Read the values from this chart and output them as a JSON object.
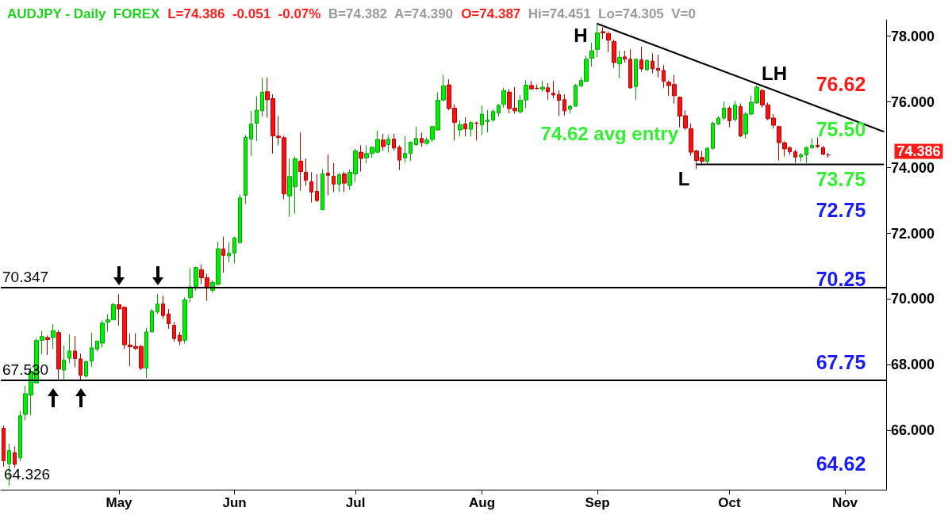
{
  "chart_data": {
    "type": "candlestick",
    "title": "AUDJPY - Daily  FOREX",
    "subtitle": "L=74.386 -0.051 -0.07% B=74.382 A=74.390 O=74.387 Hi=74.451 Lo=74.305 V=0",
    "categories": [
      null,
      null,
      null,
      null,
      null,
      null,
      null,
      null,
      null,
      null,
      null,
      null,
      null,
      null,
      null,
      null,
      null,
      null,
      null,
      null,
      null,
      "May",
      null,
      null,
      null,
      null,
      null,
      null,
      null,
      null,
      null,
      null,
      null,
      null,
      null,
      null,
      null,
      null,
      null,
      null,
      null,
      null,
      "Jun",
      null,
      null,
      null,
      null,
      null,
      null,
      null,
      null,
      null,
      null,
      null,
      null,
      null,
      null,
      null,
      null,
      null,
      null,
      null,
      null,
      null,
      "Jul",
      null,
      null,
      null,
      null,
      null,
      null,
      null,
      null,
      null,
      null,
      null,
      null,
      null,
      null,
      null,
      null,
      null,
      null,
      null,
      null,
      null,
      null,
      "Aug",
      null,
      null,
      null,
      null,
      null,
      null,
      null,
      null,
      null,
      null,
      null,
      null,
      null,
      null,
      null,
      null,
      null,
      null,
      null,
      null,
      "Sep",
      null,
      null,
      null,
      null,
      null,
      null,
      null,
      null,
      null,
      null,
      null,
      null,
      null,
      null,
      null,
      null,
      null,
      null,
      null,
      null,
      null,
      null,
      null,
      "Oct",
      null,
      null,
      null,
      null,
      null,
      null,
      null,
      null,
      null,
      null,
      null,
      null,
      null,
      null,
      null,
      null,
      null,
      null,
      null,
      null,
      "Nov",
      null,
      null,
      null,
      null,
      null,
      null,
      null
    ],
    "ohlc": [
      [
        66.07,
        66.15,
        64.9,
        65.08
      ],
      [
        64.99,
        65.6,
        64.326,
        65.39
      ],
      [
        65.33,
        65.52,
        64.87,
        64.97
      ],
      [
        65.17,
        66.6,
        65.06,
        66.45
      ],
      [
        66.49,
        67.36,
        66.31,
        67.12
      ],
      [
        67.08,
        67.93,
        66.46,
        67.8
      ],
      [
        67.45,
        68.8,
        67.45,
        68.74
      ],
      [
        68.74,
        69.03,
        68.32,
        68.86
      ],
      [
        68.83,
        68.89,
        68.3,
        68.77
      ],
      [
        68.83,
        69.24,
        68.48,
        69.04
      ],
      [
        68.98,
        69.05,
        67.56,
        67.87
      ],
      [
        67.84,
        68.58,
        67.56,
        68.14
      ],
      [
        68.2,
        68.92,
        68.05,
        68.42
      ],
      [
        68.42,
        68.87,
        67.93,
        68.19
      ],
      [
        68.18,
        68.34,
        67.5,
        67.68
      ],
      [
        67.66,
        68.12,
        67.61,
        68.1
      ],
      [
        68.11,
        68.98,
        67.94,
        68.52
      ],
      [
        68.48,
        68.74,
        68.41,
        68.72
      ],
      [
        68.66,
        69.35,
        68.53,
        69.27
      ],
      [
        69.3,
        69.54,
        69.01,
        69.37
      ],
      [
        69.37,
        69.89,
        69.37,
        69.83
      ],
      [
        69.83,
        70.15,
        69.2,
        69.7
      ],
      [
        69.75,
        69.78,
        68.48,
        68.61
      ],
      [
        68.6,
        68.95,
        67.96,
        68.55
      ],
      [
        68.56,
        68.96,
        68.45,
        68.5
      ],
      [
        68.56,
        68.6,
        67.84,
        67.9
      ],
      [
        67.9,
        69.13,
        67.6,
        69.0
      ],
      [
        69.0,
        69.7,
        69.0,
        69.63
      ],
      [
        69.61,
        70.15,
        69.55,
        69.85
      ],
      [
        69.85,
        70.1,
        69.4,
        69.5
      ],
      [
        69.55,
        69.7,
        69.1,
        69.25
      ],
      [
        69.2,
        69.3,
        68.7,
        68.8
      ],
      [
        68.9,
        69.0,
        68.6,
        68.72
      ],
      [
        68.75,
        70.05,
        68.65,
        69.98
      ],
      [
        70.05,
        70.94,
        69.9,
        70.37
      ],
      [
        70.39,
        70.99,
        70.25,
        70.96
      ],
      [
        70.89,
        71.06,
        70.46,
        70.65
      ],
      [
        70.65,
        70.77,
        69.95,
        70.33
      ],
      [
        70.27,
        70.58,
        70.19,
        70.51
      ],
      [
        70.45,
        71.75,
        70.41,
        71.53
      ],
      [
        71.53,
        71.9,
        70.8,
        71.33
      ],
      [
        71.32,
        71.73,
        71.12,
        71.4
      ],
      [
        71.4,
        71.9,
        71.09,
        71.86
      ],
      [
        71.72,
        73.18,
        71.69,
        73.08
      ],
      [
        73.16,
        74.99,
        72.9,
        74.92
      ],
      [
        74.87,
        75.73,
        74.36,
        75.33
      ],
      [
        75.35,
        76.17,
        74.81,
        75.75
      ],
      [
        75.73,
        76.72,
        75.55,
        76.3
      ],
      [
        76.31,
        76.74,
        75.53,
        76.07
      ],
      [
        76.1,
        76.23,
        74.43,
        74.97
      ],
      [
        74.96,
        75.57,
        74.68,
        74.92
      ],
      [
        74.91,
        74.97,
        73.04,
        73.2
      ],
      [
        73.14,
        74.27,
        72.5,
        73.73
      ],
      [
        73.42,
        74.34,
        72.6,
        74.27
      ],
      [
        74.2,
        75.07,
        73.3,
        73.88
      ],
      [
        73.86,
        74.28,
        73.45,
        73.62
      ],
      [
        73.57,
        73.86,
        72.94,
        73.26
      ],
      [
        73.28,
        73.8,
        72.96,
        73.0
      ],
      [
        72.72,
        73.96,
        72.72,
        73.81
      ],
      [
        73.83,
        74.4,
        73.16,
        73.77
      ],
      [
        73.74,
        74.14,
        73.26,
        73.5
      ],
      [
        73.5,
        73.84,
        73.26,
        73.78
      ],
      [
        73.81,
        73.88,
        73.26,
        73.53
      ],
      [
        73.46,
        73.94,
        73.32,
        73.86
      ],
      [
        73.81,
        74.57,
        73.56,
        74.51
      ],
      [
        74.47,
        74.68,
        73.88,
        74.28
      ],
      [
        74.3,
        74.68,
        74.14,
        74.43
      ],
      [
        74.43,
        74.65,
        74.31,
        74.62
      ],
      [
        74.47,
        75.13,
        74.44,
        74.86
      ],
      [
        74.84,
        75.03,
        74.51,
        74.64
      ],
      [
        74.7,
        74.99,
        74.46,
        74.87
      ],
      [
        74.87,
        75.03,
        74.52,
        74.6
      ],
      [
        74.62,
        74.68,
        73.93,
        74.23
      ],
      [
        74.3,
        74.96,
        74.15,
        74.43
      ],
      [
        74.43,
        74.8,
        74.2,
        74.77
      ],
      [
        74.7,
        75.25,
        74.66,
        74.89
      ],
      [
        74.89,
        75.07,
        74.64,
        74.76
      ],
      [
        74.74,
        74.92,
        74.7,
        74.84
      ],
      [
        74.86,
        75.27,
        74.79,
        75.25
      ],
      [
        75.15,
        76.29,
        75.13,
        76.05
      ],
      [
        76.06,
        76.82,
        76.02,
        76.49
      ],
      [
        76.52,
        76.69,
        75.75,
        75.8
      ],
      [
        75.81,
        75.93,
        74.83,
        75.38
      ],
      [
        75.15,
        75.45,
        74.95,
        75.31
      ],
      [
        75.33,
        75.53,
        74.95,
        75.18
      ],
      [
        75.17,
        75.42,
        74.95,
        75.37
      ],
      [
        75.36,
        75.4,
        74.83,
        75.35
      ],
      [
        75.31,
        75.89,
        74.99,
        75.63
      ],
      [
        75.4,
        75.75,
        75.07,
        75.45
      ],
      [
        75.45,
        75.78,
        75.4,
        75.71
      ],
      [
        75.67,
        75.93,
        75.55,
        75.9
      ],
      [
        75.93,
        76.43,
        75.83,
        76.34
      ],
      [
        76.3,
        76.39,
        75.65,
        75.8
      ],
      [
        75.81,
        76.45,
        75.65,
        75.73
      ],
      [
        75.7,
        76.21,
        75.65,
        76.05
      ],
      [
        76.06,
        76.67,
        75.81,
        76.51
      ],
      [
        76.5,
        76.64,
        76.37,
        76.4
      ],
      [
        76.42,
        76.53,
        76.37,
        76.41
      ],
      [
        76.39,
        76.64,
        76.31,
        76.45
      ],
      [
        76.43,
        76.57,
        76.07,
        76.31
      ],
      [
        76.27,
        76.64,
        76.11,
        76.21
      ],
      [
        76.22,
        76.35,
        75.57,
        76.05
      ],
      [
        76.07,
        76.23,
        75.59,
        75.73
      ],
      [
        75.78,
        75.91,
        75.65,
        75.87
      ],
      [
        75.87,
        76.55,
        75.87,
        76.5
      ],
      [
        76.49,
        76.75,
        76.45,
        76.65
      ],
      [
        76.63,
        77.4,
        76.6,
        77.3
      ],
      [
        77.33,
        77.8,
        77.08,
        77.56
      ],
      [
        77.6,
        78.38,
        77.36,
        78.1
      ],
      [
        78.14,
        78.27,
        77.92,
        78.1
      ],
      [
        78.08,
        78.15,
        77.52,
        77.88
      ],
      [
        77.84,
        77.9,
        77.04,
        77.2
      ],
      [
        77.16,
        77.56,
        76.72,
        77.36
      ],
      [
        77.37,
        77.56,
        77.2,
        77.3
      ],
      [
        77.3,
        77.6,
        76.4,
        76.43
      ],
      [
        76.47,
        77.32,
        76.07,
        77.3
      ],
      [
        77.28,
        77.68,
        76.92,
        77.01
      ],
      [
        76.98,
        77.3,
        76.95,
        77.26
      ],
      [
        77.24,
        77.48,
        76.87,
        77.01
      ],
      [
        77.02,
        77.44,
        76.75,
        76.96
      ],
      [
        76.96,
        77.12,
        76.43,
        76.63
      ],
      [
        76.6,
        76.65,
        76.19,
        76.5
      ],
      [
        76.53,
        76.82,
        75.95,
        76.19
      ],
      [
        76.14,
        76.17,
        75.23,
        75.57
      ],
      [
        75.58,
        75.75,
        75.15,
        75.21
      ],
      [
        75.19,
        75.35,
        74.36,
        74.47
      ],
      [
        74.51,
        74.55,
        73.96,
        74.22
      ],
      [
        74.31,
        74.51,
        74.07,
        74.19
      ],
      [
        74.19,
        74.62,
        74.1,
        74.59
      ],
      [
        74.59,
        75.4,
        74.55,
        75.35
      ],
      [
        75.33,
        75.57,
        75.3,
        75.51
      ],
      [
        75.51,
        76.02,
        75.45,
        75.81
      ],
      [
        75.81,
        75.87,
        75.23,
        75.43
      ],
      [
        75.47,
        76.03,
        75.4,
        75.9
      ],
      [
        75.86,
        75.95,
        74.93,
        74.97
      ],
      [
        75.03,
        75.7,
        74.89,
        75.63
      ],
      [
        75.63,
        76.19,
        75.6,
        75.99
      ],
      [
        75.97,
        76.5,
        75.95,
        76.45
      ],
      [
        76.35,
        76.4,
        75.83,
        75.91
      ],
      [
        75.91,
        75.98,
        75.45,
        75.49
      ],
      [
        75.51,
        75.63,
        75.19,
        75.29
      ],
      [
        75.25,
        75.28,
        74.22,
        74.76
      ],
      [
        74.76,
        74.8,
        74.34,
        74.57
      ],
      [
        74.61,
        74.65,
        74.39,
        74.48
      ],
      [
        74.48,
        74.55,
        74.14,
        74.32
      ],
      [
        74.33,
        74.45,
        74.19,
        74.39
      ],
      [
        74.39,
        74.65,
        74.14,
        74.61
      ],
      [
        74.61,
        74.89,
        74.58,
        74.68
      ],
      [
        74.68,
        74.92,
        74.6,
        74.64
      ],
      [
        74.61,
        74.66,
        74.38,
        74.41
      ],
      [
        74.387,
        74.451,
        74.305,
        74.386
      ],
      null,
      null,
      null,
      null,
      null,
      null,
      null,
      null,
      null,
      null
    ],
    "series": [
      {
        "type": "line",
        "color": "#000000",
        "values": [
          null,
          null,
          null,
          null,
          null,
          null,
          null,
          null,
          null,
          null,
          null,
          null,
          null,
          null,
          null,
          null,
          null,
          null,
          null,
          null,
          null,
          null,
          null,
          null,
          null,
          null,
          null,
          null,
          null,
          null,
          null,
          null,
          null,
          null,
          null,
          null,
          null,
          null,
          null,
          null,
          null,
          null,
          null,
          null,
          null,
          null,
          null,
          null,
          null,
          null,
          null,
          null,
          null,
          null,
          null,
          null,
          null,
          null,
          null,
          null,
          null,
          null,
          null,
          null,
          null,
          null,
          null,
          null,
          null,
          null,
          null,
          null,
          null,
          null,
          null,
          null,
          null,
          null,
          null,
          null,
          null,
          null,
          null,
          null,
          null,
          null,
          null,
          null,
          null,
          null,
          null,
          null,
          null,
          null,
          null,
          null,
          null,
          null,
          null,
          null,
          null,
          null,
          null,
          null,
          null,
          null,
          null,
          null,
          78.38,
          null,
          null,
          null,
          null,
          null,
          null,
          null,
          null,
          null,
          null,
          null,
          null,
          null,
          null,
          null,
          null,
          null,
          null,
          null,
          null,
          null,
          null,
          null,
          null,
          null,
          null,
          null,
          null,
          null,
          null,
          null,
          null,
          null,
          null,
          null,
          null,
          null,
          null,
          null,
          null,
          null,
          null,
          null,
          null,
          null,
          null,
          null,
          null,
          null,
          null,
          null,
          75.1
        ]
      },
      {
        "type": "line",
        "color": "#000000",
        "values": [
          null,
          null,
          null,
          null,
          null,
          null,
          null,
          null,
          null,
          null,
          null,
          null,
          null,
          null,
          null,
          null,
          null,
          null,
          null,
          null,
          null,
          null,
          null,
          null,
          null,
          null,
          null,
          null,
          null,
          null,
          null,
          null,
          null,
          null,
          null,
          null,
          null,
          null,
          null,
          null,
          null,
          null,
          null,
          null,
          null,
          null,
          null,
          null,
          null,
          null,
          null,
          null,
          null,
          null,
          null,
          null,
          null,
          null,
          null,
          null,
          null,
          null,
          null,
          null,
          null,
          null,
          null,
          null,
          null,
          null,
          null,
          null,
          null,
          null,
          null,
          null,
          null,
          null,
          null,
          null,
          null,
          null,
          null,
          null,
          null,
          null,
          null,
          null,
          null,
          null,
          null,
          null,
          null,
          null,
          null,
          null,
          null,
          null,
          null,
          null,
          null,
          null,
          null,
          null,
          null,
          null,
          null,
          null,
          null,
          null,
          null,
          null,
          null,
          null,
          null,
          null,
          null,
          null,
          null,
          null,
          null,
          null,
          null,
          null,
          null,
          null,
          74.1,
          null,
          null,
          null,
          null,
          null,
          null,
          null,
          null,
          null,
          null,
          null,
          null,
          null,
          null,
          null,
          null,
          null,
          null,
          null,
          null,
          null,
          null,
          null,
          null,
          null,
          null,
          null,
          null,
          null,
          null,
          null,
          null,
          null,
          74.1
        ]
      }
    ],
    "ylim": [
      64.2,
      78.5
    ],
    "yticks": [
      {
        "value": 66,
        "label": "66.000"
      },
      {
        "value": 68,
        "label": "68.000"
      },
      {
        "value": 70,
        "label": "70.000"
      },
      {
        "value": 72,
        "label": "72.000"
      },
      {
        "value": 74,
        "label": "74.000"
      },
      {
        "value": 76,
        "label": "76.000"
      },
      {
        "value": 78,
        "label": "78.000"
      }
    ],
    "ref_lines": [
      {
        "axis": "y",
        "value": 70.347,
        "label": "70.347",
        "color": "#000000"
      },
      {
        "axis": "y",
        "value": 67.53,
        "label": "67.530",
        "color": "#000000"
      }
    ],
    "annotations": [
      "H",
      "LH",
      "L",
      "64.326",
      "74.62 avg entry",
      "76.62",
      "75.50",
      "73.75",
      "72.75",
      "70.25",
      "67.75",
      "64.62",
      "74.386"
    ],
    "grid": false
  }
}
